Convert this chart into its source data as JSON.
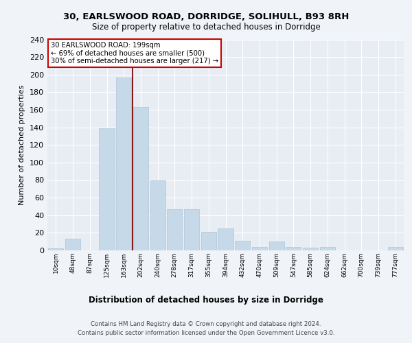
{
  "title1": "30, EARLSWOOD ROAD, DORRIDGE, SOLIHULL, B93 8RH",
  "title2": "Size of property relative to detached houses in Dorridge",
  "xlabel": "Distribution of detached houses by size in Dorridge",
  "ylabel": "Number of detached properties",
  "bin_labels": [
    "10sqm",
    "48sqm",
    "87sqm",
    "125sqm",
    "163sqm",
    "202sqm",
    "240sqm",
    "278sqm",
    "317sqm",
    "355sqm",
    "394sqm",
    "432sqm",
    "470sqm",
    "509sqm",
    "547sqm",
    "585sqm",
    "624sqm",
    "662sqm",
    "700sqm",
    "739sqm",
    "777sqm"
  ],
  "bar_values": [
    2,
    13,
    0,
    139,
    197,
    163,
    80,
    47,
    47,
    21,
    25,
    11,
    4,
    10,
    4,
    3,
    4,
    0,
    0,
    0,
    4
  ],
  "bar_color": "#c6d9e8",
  "bar_edgecolor": "#adc4d8",
  "vline_color": "#8b1a1a",
  "annotation_text": "30 EARLSWOOD ROAD: 199sqm\n← 69% of detached houses are smaller (500)\n30% of semi-detached houses are larger (217) →",
  "annotation_box_color": "#ffffff",
  "annotation_box_edgecolor": "#cc0000",
  "footer1": "Contains HM Land Registry data © Crown copyright and database right 2024.",
  "footer2": "Contains public sector information licensed under the Open Government Licence v3.0.",
  "bg_color": "#e8edf3",
  "fig_bg_color": "#f0f4f8",
  "ylim": [
    0,
    240
  ],
  "yticks": [
    0,
    20,
    40,
    60,
    80,
    100,
    120,
    140,
    160,
    180,
    200,
    220,
    240
  ]
}
